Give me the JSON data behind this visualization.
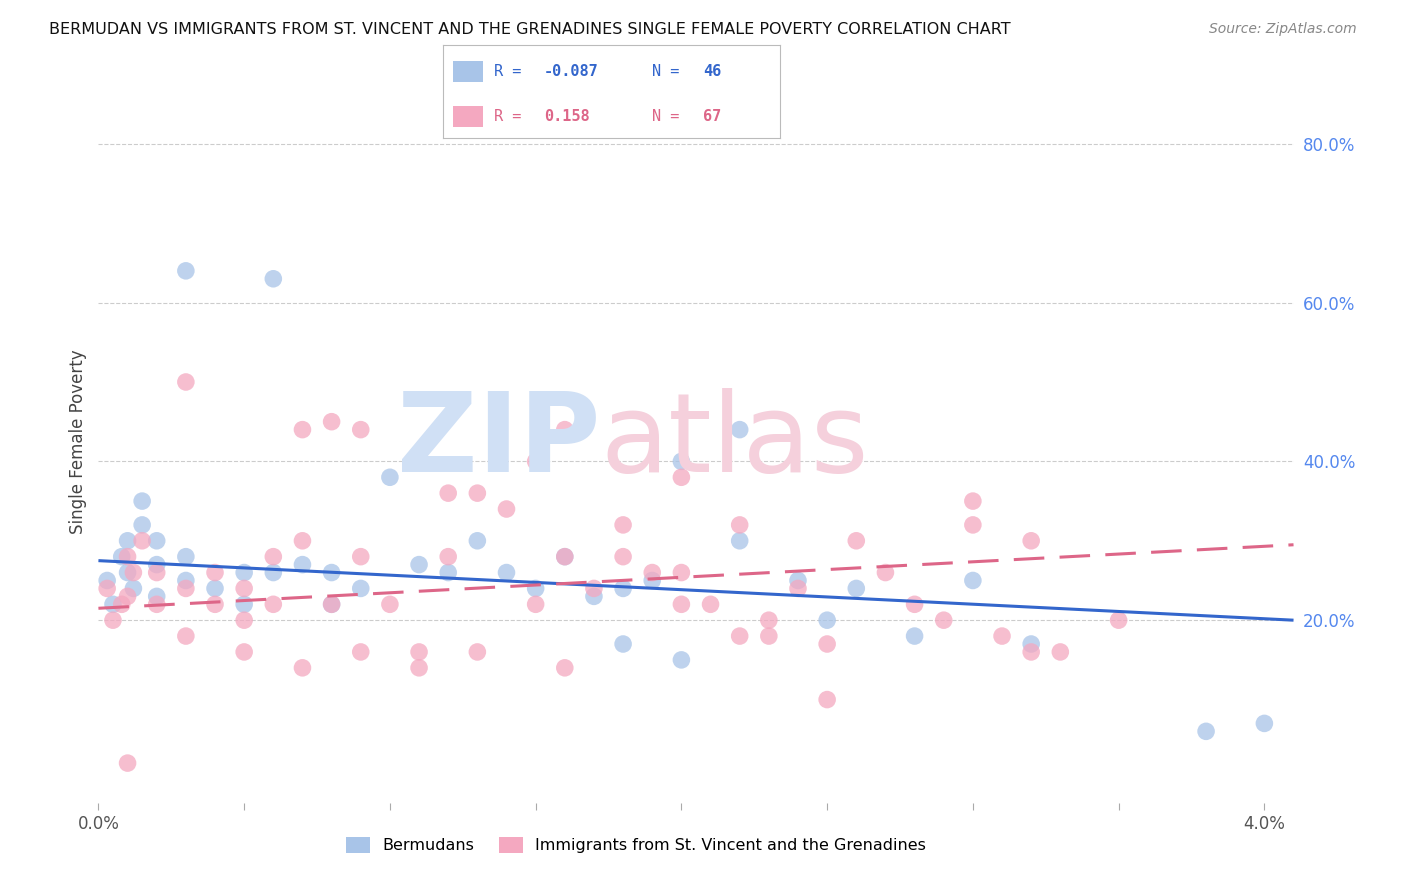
{
  "title": "BERMUDAN VS IMMIGRANTS FROM ST. VINCENT AND THE GRENADINES SINGLE FEMALE POVERTY CORRELATION CHART",
  "source": "Source: ZipAtlas.com",
  "ylabel": "Single Female Poverty",
  "right_ytick_labels": [
    "80.0%",
    "60.0%",
    "40.0%",
    "20.0%"
  ],
  "right_ytick_values": [
    0.8,
    0.6,
    0.4,
    0.2
  ],
  "xlim": [
    0.0,
    0.041
  ],
  "ylim": [
    -0.03,
    0.88
  ],
  "blue_label": "Bermudans",
  "pink_label": "Immigrants from St. Vincent and the Grenadines",
  "blue_R": "-0.087",
  "blue_N": "46",
  "pink_R": "0.158",
  "pink_N": "67",
  "blue_color": "#a8c4e8",
  "pink_color": "#f4a8c0",
  "blue_line_color": "#3366cc",
  "pink_line_color": "#dd6688",
  "watermark_zip_color": "#d0e0f5",
  "watermark_atlas_color": "#f5d0dc",
  "blue_trend": [
    0.0,
    0.041,
    0.275,
    0.2
  ],
  "pink_trend": [
    0.0,
    0.041,
    0.215,
    0.295
  ],
  "blue_scatter_x": [
    0.0003,
    0.0005,
    0.0008,
    0.001,
    0.001,
    0.0012,
    0.0015,
    0.0015,
    0.002,
    0.002,
    0.002,
    0.003,
    0.003,
    0.003,
    0.004,
    0.005,
    0.005,
    0.006,
    0.006,
    0.007,
    0.008,
    0.008,
    0.009,
    0.01,
    0.011,
    0.012,
    0.013,
    0.014,
    0.015,
    0.016,
    0.017,
    0.018,
    0.019,
    0.02,
    0.022,
    0.024,
    0.025,
    0.026,
    0.028,
    0.03,
    0.032,
    0.022,
    0.018,
    0.02,
    0.038,
    0.04
  ],
  "blue_scatter_y": [
    0.25,
    0.22,
    0.28,
    0.3,
    0.26,
    0.24,
    0.32,
    0.35,
    0.3,
    0.27,
    0.23,
    0.28,
    0.25,
    0.64,
    0.24,
    0.26,
    0.22,
    0.26,
    0.63,
    0.27,
    0.26,
    0.22,
    0.24,
    0.38,
    0.27,
    0.26,
    0.3,
    0.26,
    0.24,
    0.28,
    0.23,
    0.24,
    0.25,
    0.4,
    0.3,
    0.25,
    0.2,
    0.24,
    0.18,
    0.25,
    0.17,
    0.44,
    0.17,
    0.15,
    0.06,
    0.07
  ],
  "pink_scatter_x": [
    0.0003,
    0.0005,
    0.0008,
    0.001,
    0.001,
    0.0012,
    0.0015,
    0.002,
    0.002,
    0.003,
    0.003,
    0.004,
    0.004,
    0.005,
    0.005,
    0.006,
    0.006,
    0.007,
    0.007,
    0.008,
    0.008,
    0.009,
    0.009,
    0.01,
    0.011,
    0.012,
    0.012,
    0.013,
    0.014,
    0.015,
    0.015,
    0.016,
    0.016,
    0.017,
    0.018,
    0.019,
    0.02,
    0.02,
    0.021,
    0.022,
    0.022,
    0.023,
    0.024,
    0.025,
    0.026,
    0.027,
    0.028,
    0.029,
    0.03,
    0.031,
    0.032,
    0.033,
    0.003,
    0.005,
    0.007,
    0.009,
    0.011,
    0.013,
    0.016,
    0.018,
    0.02,
    0.023,
    0.025,
    0.03,
    0.032,
    0.035,
    0.001
  ],
  "pink_scatter_y": [
    0.24,
    0.2,
    0.22,
    0.28,
    0.23,
    0.26,
    0.3,
    0.22,
    0.26,
    0.24,
    0.5,
    0.26,
    0.22,
    0.24,
    0.2,
    0.22,
    0.28,
    0.44,
    0.3,
    0.45,
    0.22,
    0.44,
    0.28,
    0.22,
    0.14,
    0.36,
    0.28,
    0.36,
    0.34,
    0.4,
    0.22,
    0.28,
    0.44,
    0.24,
    0.32,
    0.26,
    0.22,
    0.38,
    0.22,
    0.32,
    0.18,
    0.2,
    0.24,
    0.17,
    0.3,
    0.26,
    0.22,
    0.2,
    0.35,
    0.18,
    0.16,
    0.16,
    0.18,
    0.16,
    0.14,
    0.16,
    0.16,
    0.16,
    0.14,
    0.28,
    0.26,
    0.18,
    0.1,
    0.32,
    0.3,
    0.2,
    0.02
  ]
}
